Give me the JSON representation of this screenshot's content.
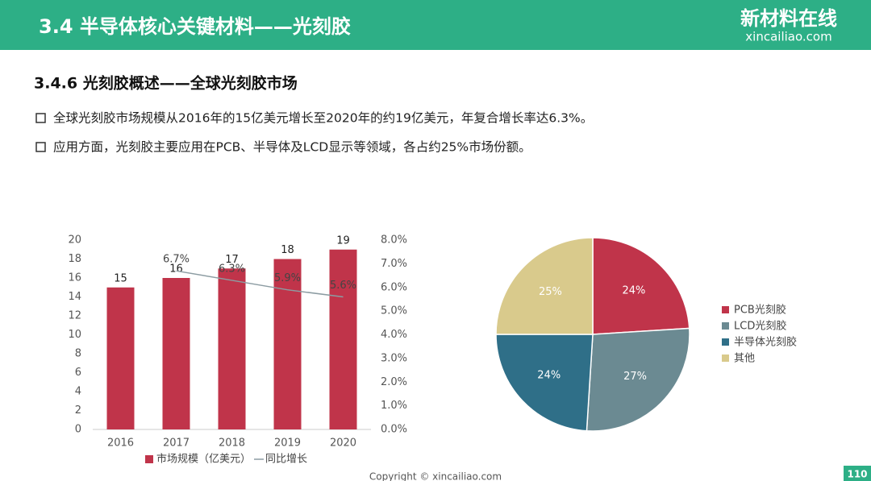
{
  "header": {
    "title": "3.4 半导体核心关键材料——光刻胶",
    "logo": "新材料在线",
    "logo_url": "xincailiao.com"
  },
  "section_title": "3.4.6 光刻胶概述——全球光刻胶市场",
  "bullets": [
    "全球光刻胶市场规模从2016年的15亿美元增长至2020年的约19亿美元，年复合增长率达6.3%。",
    "应用方面，光刻胶主要应用在PCB、半导体及LCD显示等领域，各占约25%市场份额。"
  ],
  "footer": {
    "copyright": "Copyright © xincailiao.com",
    "page": "110"
  },
  "chart_data": [
    {
      "type": "bar",
      "categories": [
        "2016",
        "2017",
        "2018",
        "2019",
        "2020"
      ],
      "series": [
        {
          "name": "市场规模（亿美元）",
          "color": "#c0344a",
          "values": [
            15,
            16,
            17,
            18,
            19
          ]
        },
        {
          "name": "同比增长",
          "color": "#8c9ca2",
          "type": "line",
          "axis": "y2",
          "values": [
            null,
            6.7,
            6.3,
            5.9,
            5.6
          ],
          "value_labels": [
            null,
            "6.7%",
            "6.3%",
            "5.9%",
            "5.6%"
          ]
        }
      ],
      "ylim": [
        0,
        20
      ],
      "yticks": [
        0,
        2,
        4,
        6,
        8,
        10,
        12,
        14,
        16,
        18,
        20
      ],
      "y2lim": [
        0,
        8
      ],
      "y2ticks": [
        {
          "value": 0,
          "label": "0.0%"
        },
        {
          "value": 1,
          "label": "1.0%"
        },
        {
          "value": 2,
          "label": "2.0%"
        },
        {
          "value": 3,
          "label": "3.0%"
        },
        {
          "value": 4,
          "label": "4.0%"
        },
        {
          "value": 5,
          "label": "5.0%"
        },
        {
          "value": 6,
          "label": "6.0%"
        },
        {
          "value": 7,
          "label": "7.0%"
        },
        {
          "value": 8,
          "label": "8.0%"
        }
      ],
      "grid": false,
      "legend": "bottom"
    },
    {
      "type": "pie",
      "categories": [
        "PCB光刻胶",
        "LCD光刻胶",
        "半导体光刻胶",
        "其他"
      ],
      "values": [
        24,
        27,
        24,
        25
      ],
      "value_labels": [
        "24%",
        "27%",
        "24%",
        "25%"
      ],
      "colors": [
        "#c0344a",
        "#6b8a92",
        "#2f6f88",
        "#d9ca8c"
      ],
      "legend": "right"
    }
  ]
}
